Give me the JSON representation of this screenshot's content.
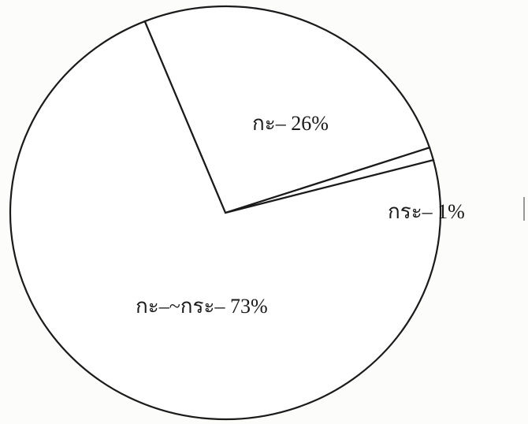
{
  "chart_data": {
    "type": "pie",
    "title": "",
    "slices": [
      {
        "label": "กะ–",
        "value": 26,
        "text": "กะ– 26%"
      },
      {
        "label": "กระ–",
        "value": 1,
        "text": "กระ– 1%"
      },
      {
        "label": "กะ–~กระ–",
        "value": 73,
        "text": "กะ–~กระ– 73%"
      }
    ],
    "unit": "%",
    "legend": "none",
    "colors": {
      "fill": "#ffffff",
      "stroke": "#1a1a1a",
      "background": "#fcfcfa"
    }
  }
}
